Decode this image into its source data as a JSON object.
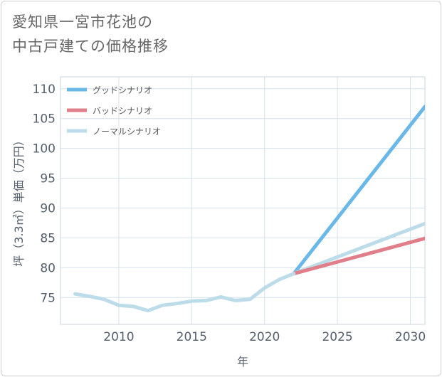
{
  "title_lines": [
    "愛知県一宮市花池の",
    "中古戸建ての価格推移"
  ],
  "colors": {
    "good": "#6ab8e8",
    "bad": "#e07f8a",
    "normal": "#bddcea",
    "grid": "#d6e2ec",
    "axis_text": "#555f6b",
    "title_text": "#666666"
  },
  "chart_data": {
    "type": "line",
    "title": "愛知県一宮市花池の中古戸建ての価格推移",
    "xlabel": "年",
    "ylabel": "坪（3.3㎡）単価（万円）",
    "xlim": [
      2006,
      2031
    ],
    "ylim": [
      70.5,
      112
    ],
    "xticks": [
      2010,
      2015,
      2020,
      2025,
      2030
    ],
    "yticks": [
      75,
      80,
      85,
      90,
      95,
      100,
      105,
      110
    ],
    "legend_position": "top-left",
    "history": {
      "x": [
        2007,
        2008,
        2009,
        2010,
        2011,
        2012,
        2013,
        2014,
        2015,
        2016,
        2017,
        2018,
        2019,
        2020,
        2021,
        2022
      ],
      "y": [
        75.6,
        75.2,
        74.7,
        73.7,
        73.5,
        72.8,
        73.7,
        74.0,
        74.4,
        74.5,
        75.1,
        74.5,
        74.7,
        76.6,
        78.0,
        79.0
      ]
    },
    "series": [
      {
        "key": "good",
        "name": "グッドシナリオ",
        "x": [
          2022,
          2031
        ],
        "y": [
          79.0,
          107.0
        ]
      },
      {
        "key": "bad",
        "name": "バッドシナリオ",
        "x": [
          2022,
          2031
        ],
        "y": [
          79.0,
          84.9
        ]
      },
      {
        "key": "normal",
        "name": "ノーマルシナリオ",
        "x": [
          2022,
          2031
        ],
        "y": [
          79.0,
          87.4
        ]
      }
    ]
  }
}
